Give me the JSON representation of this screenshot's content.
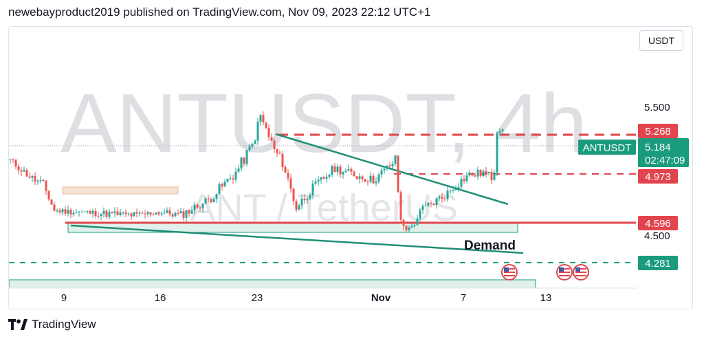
{
  "header": {
    "published_text": "newebayproduct2019 published on TradingView.com, Nov 09, 2023 22:12 UTC+1"
  },
  "currency_button": "USDT",
  "watermark": {
    "symbol_interval": "ANTUSDT, 4h",
    "description": "ANT / TetherUS"
  },
  "footer": {
    "brand": "TradingView"
  },
  "colors": {
    "up": "#26a69a",
    "down": "#ef5350",
    "level_red": "#e2444d",
    "level_green": "#1b9b7e",
    "trendline": "#1f8f76",
    "watermark": "#c3c5cb",
    "demand_zone": "#dff1ea",
    "supply_zone": "#f7e3d3"
  },
  "chart_data": {
    "type": "candlestick",
    "symbol": "ANTUSDT",
    "interval": "4h",
    "ylim": [
      4.14,
      5.86
    ],
    "y_ticks": [
      "5.500",
      "4.500"
    ],
    "x_ticks": [
      "9",
      "16",
      "23",
      "Nov",
      "7",
      "13"
    ],
    "last_price": "5.184",
    "countdown": "02:47:09",
    "price_labels": [
      {
        "name": "ANTUSDT",
        "value": "5.184"
      },
      {
        "value": "5.268"
      },
      {
        "value": "4.973"
      },
      {
        "value": "4.596"
      },
      {
        "value": "4.281"
      }
    ],
    "annotations": [
      {
        "text": "Demand"
      }
    ],
    "candle_segments": [
      {
        "from": [
          0,
          4.98
        ],
        "to": [
          8,
          4.86
        ],
        "noise": 0.025
      },
      {
        "from": [
          8,
          4.86
        ],
        "to": [
          12,
          4.82
        ],
        "noise": 0.03
      },
      {
        "from": [
          12,
          4.82
        ],
        "to": [
          16,
          4.65
        ],
        "noise": 0.03
      },
      {
        "from": [
          16,
          4.65
        ],
        "to": [
          34,
          4.63
        ],
        "noise": 0.02
      },
      {
        "from": [
          34,
          4.63
        ],
        "to": [
          46,
          4.62
        ],
        "noise": 0.025
      },
      {
        "from": [
          46,
          4.62
        ],
        "to": [
          54,
          4.64
        ],
        "noise": 0.02
      },
      {
        "from": [
          54,
          4.64
        ],
        "to": [
          62,
          4.62
        ],
        "noise": 0.025
      },
      {
        "from": [
          62,
          4.62
        ],
        "to": [
          72,
          4.72
        ],
        "noise": 0.03
      },
      {
        "from": [
          72,
          4.72
        ],
        "to": [
          82,
          4.9
        ],
        "noise": 0.035
      },
      {
        "from": [
          82,
          4.9
        ],
        "to": [
          88,
          5.08
        ],
        "noise": 0.04
      },
      {
        "from": [
          88,
          5.08
        ],
        "to": [
          91,
          5.27
        ],
        "noise": 0.04
      },
      {
        "from": [
          91,
          5.27
        ],
        "to": [
          96,
          5.05
        ],
        "noise": 0.04
      },
      {
        "from": [
          96,
          5.05
        ],
        "to": [
          99,
          4.97
        ],
        "noise": 0.03
      },
      {
        "from": [
          99,
          4.97
        ],
        "to": [
          104,
          4.67
        ],
        "noise": 0.04
      },
      {
        "from": [
          104,
          4.67
        ],
        "to": [
          110,
          4.8
        ],
        "noise": 0.035
      },
      {
        "from": [
          110,
          4.8
        ],
        "to": [
          118,
          4.93
        ],
        "noise": 0.03
      },
      {
        "from": [
          118,
          4.93
        ],
        "to": [
          126,
          4.88
        ],
        "noise": 0.03
      },
      {
        "from": [
          126,
          4.88
        ],
        "to": [
          132,
          4.85
        ],
        "noise": 0.03
      },
      {
        "from": [
          132,
          4.85
        ],
        "to": [
          137,
          4.93
        ],
        "noise": 0.03
      },
      {
        "from": [
          137,
          4.93
        ],
        "to": [
          140,
          4.98
        ],
        "noise": 0.03
      },
      {
        "from": [
          140,
          4.98
        ],
        "to": [
          142,
          4.58
        ],
        "noise": 0.04
      },
      {
        "from": [
          142,
          4.58
        ],
        "to": [
          145,
          4.52
        ],
        "noise": 0.03
      },
      {
        "from": [
          145,
          4.52
        ],
        "to": [
          150,
          4.66
        ],
        "noise": 0.03
      },
      {
        "from": [
          150,
          4.66
        ],
        "to": [
          158,
          4.75
        ],
        "noise": 0.03
      },
      {
        "from": [
          158,
          4.75
        ],
        "to": [
          166,
          4.88
        ],
        "noise": 0.03
      },
      {
        "from": [
          166,
          4.88
        ],
        "to": [
          172,
          4.9
        ],
        "noise": 0.03
      },
      {
        "from": [
          172,
          4.9
        ],
        "to": [
          175,
          4.87
        ],
        "noise": 0.03
      },
      {
        "from": [
          175,
          4.87
        ],
        "to": [
          176,
          4.92
        ],
        "noise": 0.03
      },
      {
        "from": [
          176,
          4.92
        ],
        "to": [
          177,
          5.18
        ],
        "noise": 0.03
      },
      {
        "from": [
          177,
          5.18
        ],
        "to": [
          179,
          5.184
        ],
        "noise": 0.02
      }
    ]
  }
}
